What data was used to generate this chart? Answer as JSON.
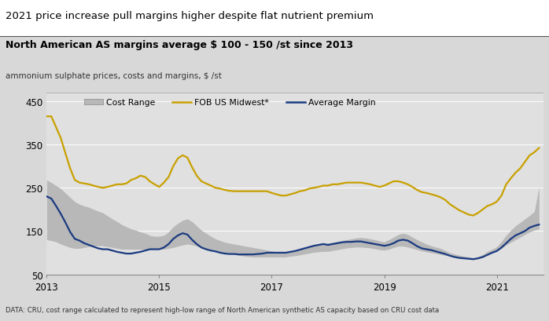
{
  "title": "2021 price increase pull margins higher despite flat nutrient premium",
  "subtitle": "North American AS margins average $ 100 - 150 /st since 2013",
  "ylabel_unit": "ammonium sulphate prices, costs and margins, $ /st",
  "footnote": "DATA: CRU, cost range calculated to represent high-low range of North American synthetic AS capacity based on CRU cost data",
  "ylim": [
    50,
    470
  ],
  "yticks": [
    50,
    150,
    250,
    350,
    450
  ],
  "xticks": [
    2013,
    2015,
    2017,
    2019,
    2021
  ],
  "bg_color": "#d8d8d8",
  "plot_bg_color": "#e0e0e0",
  "cost_range_color": "#b8b8b8",
  "fob_color": "#c8a000",
  "margin_color": "#1a3a80",
  "time_points": [
    2013.0,
    2013.083,
    2013.167,
    2013.25,
    2013.333,
    2013.417,
    2013.5,
    2013.583,
    2013.667,
    2013.75,
    2013.833,
    2013.917,
    2014.0,
    2014.083,
    2014.167,
    2014.25,
    2014.333,
    2014.417,
    2014.5,
    2014.583,
    2014.667,
    2014.75,
    2014.833,
    2014.917,
    2015.0,
    2015.083,
    2015.167,
    2015.25,
    2015.333,
    2015.417,
    2015.5,
    2015.583,
    2015.667,
    2015.75,
    2015.833,
    2015.917,
    2016.0,
    2016.083,
    2016.167,
    2016.25,
    2016.333,
    2016.417,
    2016.5,
    2016.583,
    2016.667,
    2016.75,
    2016.833,
    2016.917,
    2017.0,
    2017.083,
    2017.167,
    2017.25,
    2017.333,
    2017.417,
    2017.5,
    2017.583,
    2017.667,
    2017.75,
    2017.833,
    2017.917,
    2018.0,
    2018.083,
    2018.167,
    2018.25,
    2018.333,
    2018.417,
    2018.5,
    2018.583,
    2018.667,
    2018.75,
    2018.833,
    2018.917,
    2019.0,
    2019.083,
    2019.167,
    2019.25,
    2019.333,
    2019.417,
    2019.5,
    2019.583,
    2019.667,
    2019.75,
    2019.833,
    2019.917,
    2020.0,
    2020.083,
    2020.167,
    2020.25,
    2020.333,
    2020.417,
    2020.5,
    2020.583,
    2020.667,
    2020.75,
    2020.833,
    2020.917,
    2021.0,
    2021.083,
    2021.167,
    2021.25,
    2021.333,
    2021.417,
    2021.5,
    2021.583,
    2021.667,
    2021.75
  ],
  "fob_data": [
    415,
    415,
    390,
    365,
    330,
    295,
    268,
    262,
    260,
    258,
    255,
    252,
    250,
    252,
    255,
    258,
    258,
    260,
    268,
    272,
    278,
    275,
    265,
    258,
    252,
    262,
    275,
    300,
    318,
    325,
    320,
    298,
    278,
    265,
    260,
    255,
    250,
    248,
    245,
    243,
    242,
    242,
    242,
    242,
    242,
    242,
    242,
    242,
    238,
    235,
    232,
    232,
    235,
    238,
    242,
    244,
    248,
    250,
    252,
    255,
    255,
    258,
    258,
    260,
    262,
    262,
    262,
    262,
    260,
    258,
    255,
    252,
    255,
    260,
    265,
    265,
    262,
    258,
    252,
    245,
    240,
    238,
    235,
    232,
    228,
    222,
    212,
    205,
    198,
    193,
    188,
    186,
    192,
    200,
    208,
    212,
    218,
    232,
    258,
    272,
    285,
    295,
    310,
    325,
    332,
    342
  ],
  "cost_low": [
    130,
    128,
    125,
    120,
    116,
    112,
    110,
    110,
    112,
    114,
    116,
    116,
    116,
    114,
    112,
    110,
    108,
    108,
    108,
    108,
    108,
    108,
    108,
    108,
    108,
    108,
    110,
    112,
    115,
    118,
    120,
    118,
    115,
    112,
    110,
    108,
    105,
    102,
    100,
    98,
    96,
    94,
    92,
    91,
    90,
    90,
    90,
    90,
    90,
    90,
    90,
    90,
    92,
    93,
    95,
    97,
    99,
    101,
    102,
    103,
    103,
    105,
    107,
    109,
    111,
    112,
    113,
    113,
    112,
    111,
    109,
    107,
    106,
    108,
    112,
    115,
    115,
    113,
    110,
    107,
    104,
    102,
    100,
    98,
    96,
    94,
    92,
    90,
    88,
    87,
    86,
    85,
    87,
    91,
    96,
    100,
    104,
    110,
    118,
    124,
    130,
    136,
    142,
    148,
    152,
    155
  ],
  "cost_high": [
    268,
    262,
    255,
    248,
    238,
    228,
    218,
    212,
    208,
    205,
    200,
    196,
    192,
    185,
    178,
    172,
    165,
    160,
    155,
    152,
    148,
    145,
    140,
    138,
    138,
    140,
    148,
    160,
    168,
    175,
    178,
    172,
    162,
    152,
    145,
    138,
    132,
    128,
    124,
    122,
    120,
    118,
    116,
    114,
    112,
    110,
    108,
    106,
    104,
    102,
    100,
    100,
    103,
    106,
    110,
    113,
    116,
    118,
    120,
    122,
    122,
    124,
    126,
    128,
    130,
    132,
    134,
    135,
    134,
    132,
    130,
    127,
    125,
    130,
    136,
    142,
    145,
    142,
    136,
    130,
    125,
    120,
    116,
    113,
    110,
    105,
    100,
    97,
    94,
    92,
    90,
    88,
    91,
    96,
    103,
    108,
    114,
    126,
    140,
    152,
    162,
    170,
    178,
    186,
    195,
    252
  ],
  "margin_data": [
    230,
    225,
    208,
    190,
    170,
    148,
    132,
    128,
    122,
    118,
    114,
    110,
    108,
    108,
    105,
    102,
    100,
    98,
    98,
    100,
    102,
    105,
    108,
    108,
    108,
    112,
    120,
    132,
    140,
    145,
    142,
    130,
    120,
    112,
    108,
    105,
    103,
    100,
    98,
    97,
    97,
    96,
    96,
    96,
    96,
    97,
    98,
    100,
    100,
    100,
    100,
    100,
    102,
    104,
    107,
    110,
    113,
    116,
    118,
    120,
    118,
    120,
    122,
    124,
    125,
    125,
    126,
    126,
    124,
    122,
    120,
    118,
    116,
    118,
    122,
    128,
    130,
    128,
    122,
    115,
    110,
    108,
    106,
    103,
    100,
    97,
    93,
    90,
    88,
    87,
    86,
    85,
    87,
    90,
    95,
    100,
    104,
    112,
    122,
    132,
    140,
    145,
    150,
    158,
    162,
    165
  ]
}
